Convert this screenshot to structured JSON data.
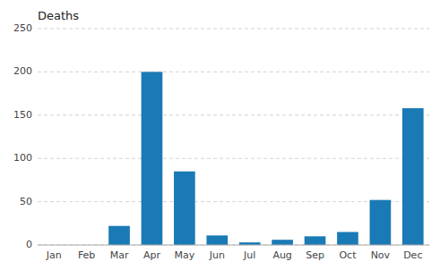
{
  "chart_data": {
    "type": "bar",
    "title": "Deaths",
    "categories": [
      "Jan",
      "Feb",
      "Mar",
      "Apr",
      "May",
      "Jun",
      "Jul",
      "Aug",
      "Sep",
      "Oct",
      "Nov",
      "Dec"
    ],
    "values": [
      0,
      0,
      22,
      200,
      85,
      11,
      3,
      6,
      10,
      15,
      52,
      158
    ],
    "color": "#1a7ab5",
    "ylim": [
      0,
      250
    ],
    "yticks": [
      0,
      50,
      100,
      150,
      200,
      250
    ],
    "grid": true
  }
}
